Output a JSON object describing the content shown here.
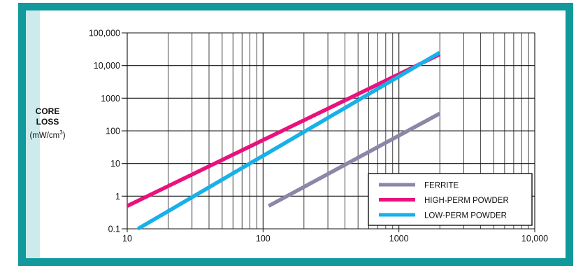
{
  "chart_data": {
    "type": "line",
    "scale": "log-log",
    "ylabel_main": [
      "CORE",
      "LOSS"
    ],
    "ylabel_unit": "(mW/cm",
    "ylabel_unit_sup": "3",
    "ylabel_unit_end": ")",
    "xlim": [
      10,
      10000
    ],
    "ylim": [
      0.1,
      100000
    ],
    "x_ticks": [
      {
        "value": 10,
        "label": "10"
      },
      {
        "value": 100,
        "label": "100"
      },
      {
        "value": 1000,
        "label": "1000"
      },
      {
        "value": 10000,
        "label": "10,000"
      }
    ],
    "y_ticks": [
      {
        "value": 0.1,
        "label": "0.1"
      },
      {
        "value": 1,
        "label": "1"
      },
      {
        "value": 10,
        "label": "10"
      },
      {
        "value": 100,
        "label": "100"
      },
      {
        "value": 1000,
        "label": "1000"
      },
      {
        "value": 10000,
        "label": "10,000"
      },
      {
        "value": 100000,
        "label": "100,000"
      }
    ],
    "grid": true,
    "legend_position": "bottom-right",
    "series": [
      {
        "name": "FERRITE",
        "color": "#8a87a8",
        "points": [
          [
            110,
            0.5
          ],
          [
            2000,
            340
          ]
        ]
      },
      {
        "name": "HIGH-PERM POWDER",
        "color": "#e8127c",
        "points": [
          [
            10,
            0.5
          ],
          [
            2000,
            22000
          ]
        ]
      },
      {
        "name": "LOW-PERM POWDER",
        "color": "#18b0e8",
        "points": [
          [
            12,
            0.1
          ],
          [
            2000,
            25000
          ]
        ]
      }
    ]
  },
  "colors": {
    "frame": "#11999c",
    "strip": "#cdebec",
    "grid": "#111111"
  }
}
